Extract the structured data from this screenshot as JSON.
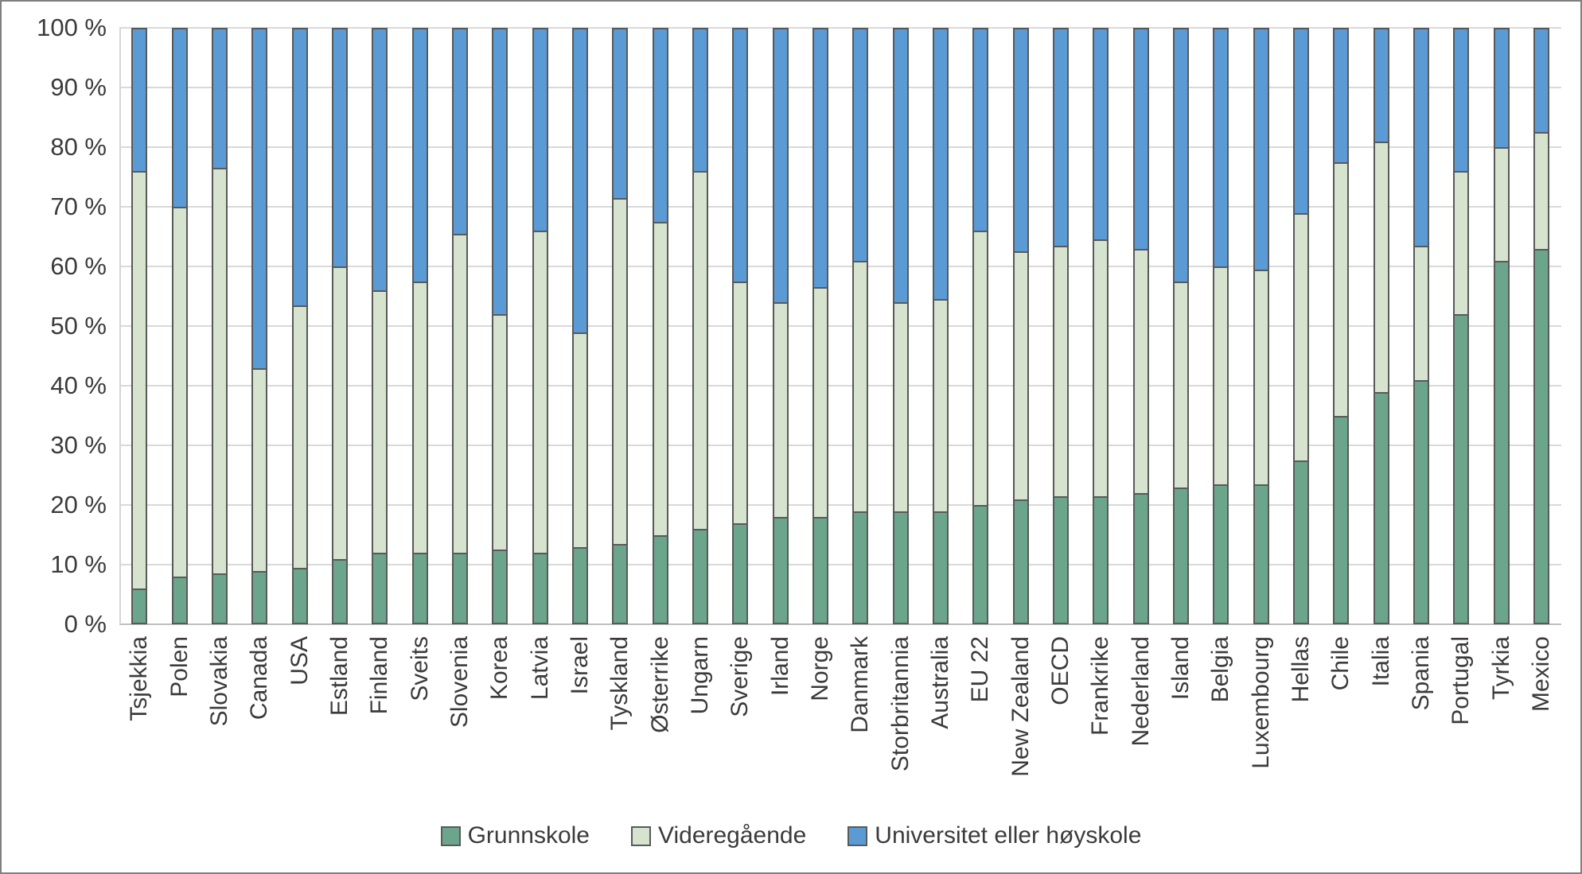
{
  "chart_data": {
    "type": "bar",
    "stacked": true,
    "stacked_unit": "percent",
    "title": "",
    "xlabel": "",
    "ylabel": "",
    "grid": true,
    "legend_position": "bottom",
    "categories": [
      "Tsjekkia",
      "Polen",
      "Slovakia",
      "Canada",
      "USA",
      "Estland",
      "Finland",
      "Sveits",
      "Slovenia",
      "Korea",
      "Latvia",
      "Israel",
      "Tyskland",
      "Østerrike",
      "Ungarn",
      "Sverige",
      "Irland",
      "Norge",
      "Danmark",
      "Storbritannia",
      "Australia",
      "EU 22",
      "New Zealand",
      "OECD",
      "Frankrike",
      "Nederland",
      "Island",
      "Belgia",
      "Luxembourg",
      "Hellas",
      "Chile",
      "Italia",
      "Spania",
      "Portugal",
      "Tyrkia",
      "Mexico"
    ],
    "series": [
      {
        "name": "Grunnskole",
        "color": "#6ba68c",
        "values": [
          6,
          8,
          8.5,
          9,
          9.5,
          11,
          12,
          12,
          12,
          12.5,
          12,
          13,
          13.5,
          15,
          16,
          17,
          18,
          18,
          19,
          19,
          19,
          20,
          21,
          21.5,
          21.5,
          22,
          23,
          23.5,
          23.5,
          27.5,
          35,
          39,
          41,
          52,
          61,
          63
        ]
      },
      {
        "name": "Videregående",
        "color": "#d6e4cf",
        "values": [
          70,
          62,
          68,
          34,
          44,
          49,
          44,
          45.5,
          53.5,
          39.5,
          54,
          36,
          58,
          52.5,
          60,
          40.5,
          36,
          38.5,
          42,
          35,
          35.5,
          46,
          41.5,
          42,
          43,
          41,
          34.5,
          36.5,
          36,
          41.5,
          42.5,
          42,
          22.5,
          24,
          19,
          19.5
        ]
      },
      {
        "name": "Universitet eller høyskole",
        "color": "#5b9bd5",
        "values": [
          24,
          30,
          23.5,
          57,
          46.5,
          40,
          44,
          42.5,
          34.5,
          48,
          34,
          51,
          28.5,
          32.5,
          24,
          42.5,
          46,
          43.5,
          39,
          46,
          45.5,
          34,
          37.5,
          36.5,
          35.5,
          37,
          42.5,
          40,
          40.5,
          31,
          22.5,
          19,
          36.5,
          24,
          20,
          17.5
        ]
      }
    ],
    "y_axis": {
      "min": 0,
      "max": 100,
      "step": 10,
      "tick_labels": [
        "0 %",
        "10 %",
        "20 %",
        "30 %",
        "40 %",
        "50 %",
        "60 %",
        "70 %",
        "80 %",
        "90 %",
        "100 %"
      ]
    },
    "style": {
      "segment_border_color": "#595959",
      "gridline_color": "#d9d9d9",
      "axis_line_color": "#bfbfbf",
      "text_color": "#3b3b3b",
      "frame_border_color": "#7f7f7f",
      "background_color": "#ffffff"
    }
  }
}
